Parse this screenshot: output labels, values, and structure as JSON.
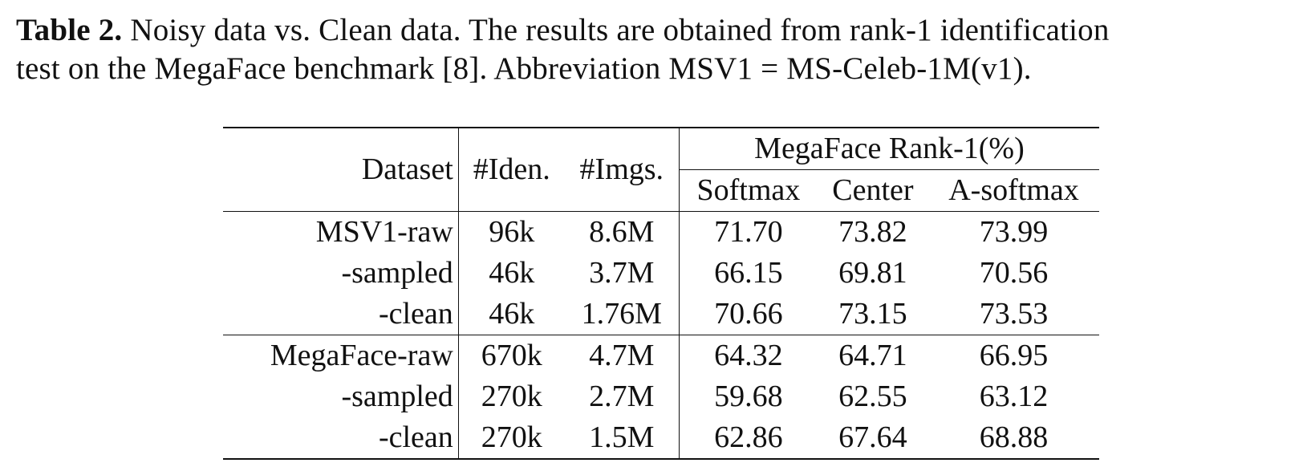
{
  "caption": {
    "label": "Table 2.",
    "line1": " Noisy data vs. Clean data. The results are obtained from rank-1 identification",
    "line2": "test on the MegaFace benchmark [8]. Abbreviation MSV1 = MS-Celeb-1M(v1)."
  },
  "table": {
    "headers": {
      "dataset": "Dataset",
      "iden": "#Iden.",
      "imgs": "#Imgs.",
      "group": "MegaFace Rank-1(%)",
      "softmax": "Softmax",
      "center": "Center",
      "asoftmax": "A-softmax"
    },
    "rows": [
      {
        "dataset": "MSV1-raw",
        "iden": "96k",
        "imgs": "8.6M",
        "softmax": "71.70",
        "center": "73.82",
        "asoftmax": "73.99"
      },
      {
        "dataset": "-sampled",
        "iden": "46k",
        "imgs": "3.7M",
        "softmax": "66.15",
        "center": "69.81",
        "asoftmax": "70.56"
      },
      {
        "dataset": "-clean",
        "iden": "46k",
        "imgs": "1.76M",
        "softmax": "70.66",
        "center": "73.15",
        "asoftmax": "73.53"
      },
      {
        "dataset": "MegaFace-raw",
        "iden": "670k",
        "imgs": "4.7M",
        "softmax": "64.32",
        "center": "64.71",
        "asoftmax": "66.95"
      },
      {
        "dataset": "-sampled",
        "iden": "270k",
        "imgs": "2.7M",
        "softmax": "59.68",
        "center": "62.55",
        "asoftmax": "63.12"
      },
      {
        "dataset": "-clean",
        "iden": "270k",
        "imgs": "1.5M",
        "softmax": "62.86",
        "center": "67.64",
        "asoftmax": "68.88"
      }
    ]
  }
}
